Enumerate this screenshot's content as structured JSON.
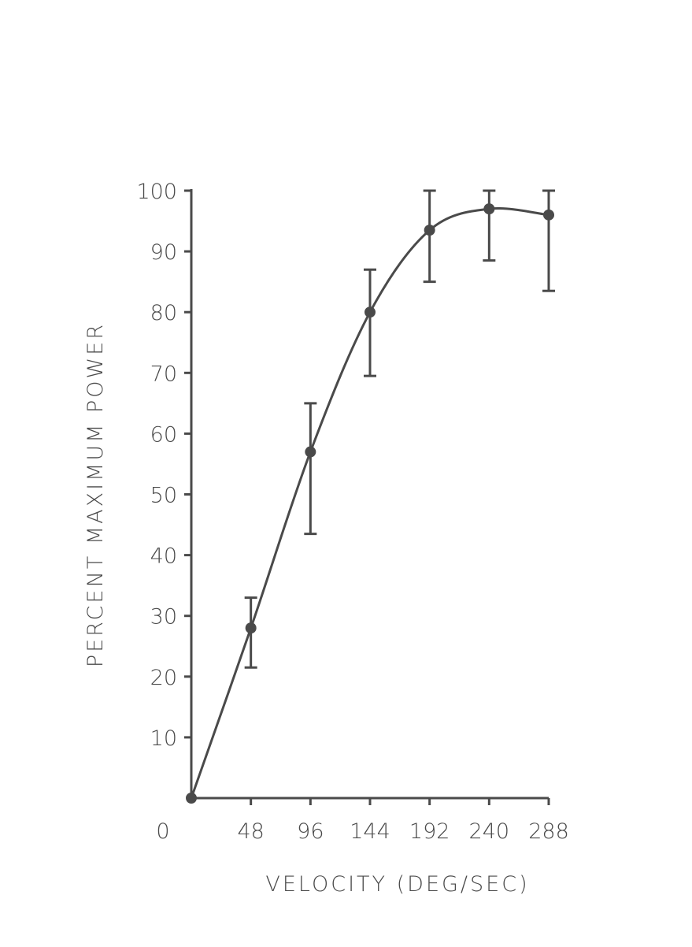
{
  "chart_data": {
    "type": "line",
    "title": "",
    "xlabel": "VELOCITY (DEG/SEC)",
    "ylabel": "PERCENT MAXIMUM POWER",
    "x_ticks": [
      "0",
      "48",
      "96",
      "144",
      "192",
      "240",
      "288"
    ],
    "y_ticks": [
      "10",
      "20",
      "30",
      "40",
      "50",
      "60",
      "70",
      "80",
      "90",
      "100"
    ],
    "xlim": [
      0,
      288
    ],
    "ylim": [
      0,
      100
    ],
    "grid": false,
    "legend": "none",
    "line_color": "#4a4a4a",
    "series": [
      {
        "x": [
          0,
          48,
          96,
          144,
          192,
          240,
          288
        ],
        "y": [
          0,
          28,
          57,
          80,
          93.5,
          97,
          96
        ],
        "error_low": [
          0,
          21.5,
          43.5,
          69.5,
          85,
          88.5,
          83.5
        ],
        "error_high": [
          0,
          33,
          65,
          87,
          100,
          100,
          100
        ]
      }
    ]
  }
}
